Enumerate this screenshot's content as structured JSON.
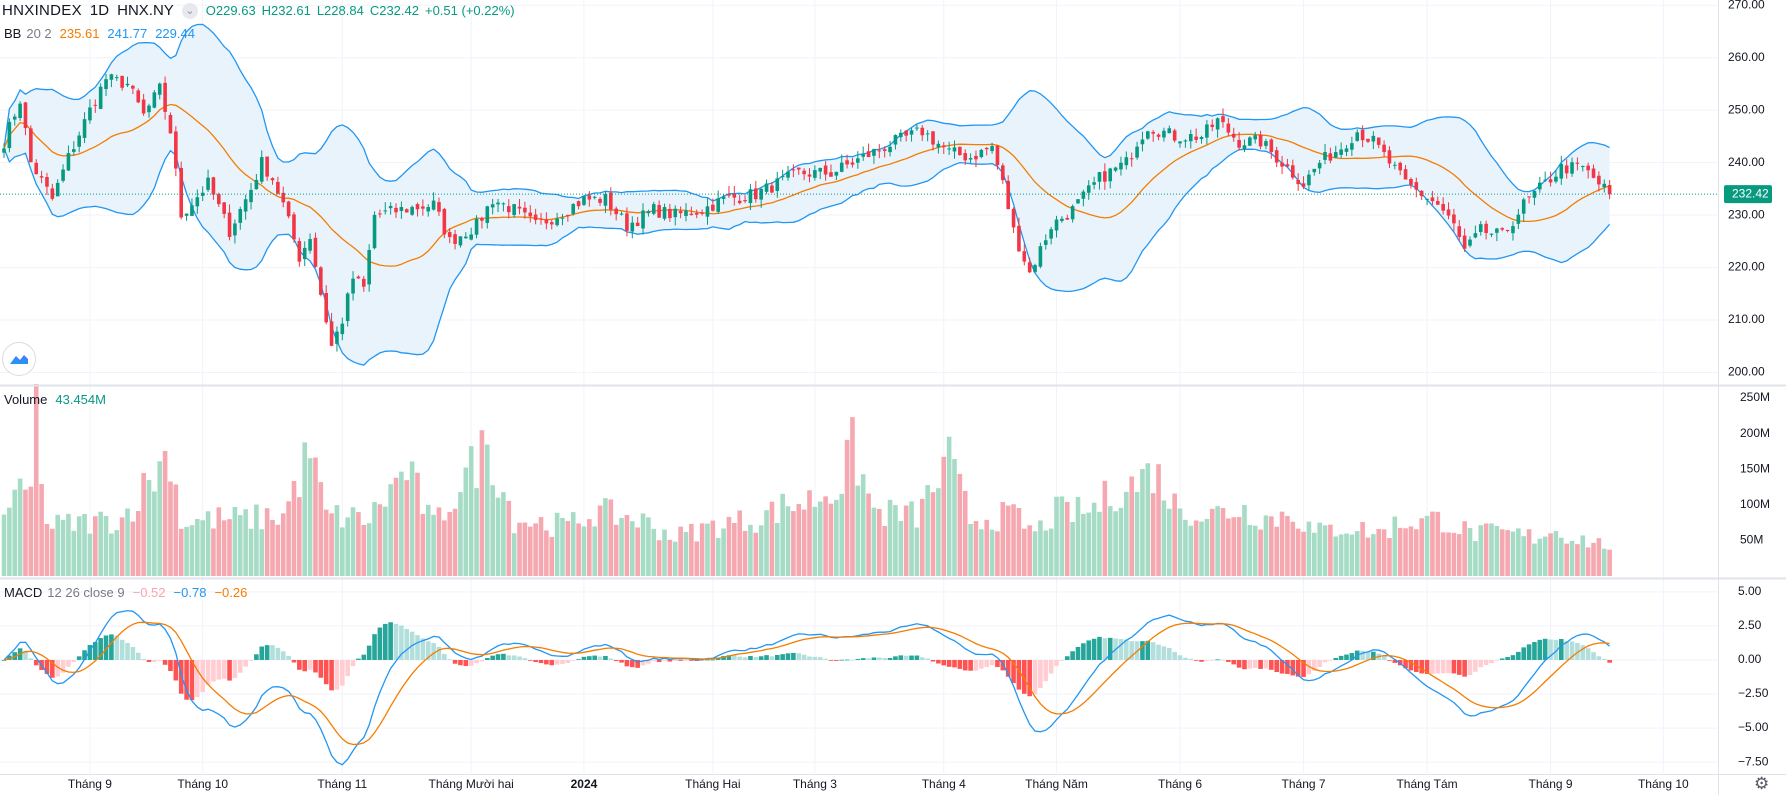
{
  "header": {
    "symbol": "HNXINDEX",
    "interval": "1D",
    "exchange": "HNX.NY",
    "open": "O229.63",
    "high": "H232.61",
    "low": "L228.84",
    "close": "C232.42",
    "change": "+0.51 (+0.22%)"
  },
  "bb_legend": {
    "name": "BB",
    "params": "20 2",
    "basis": "235.61",
    "upper": "241.77",
    "lower": "229.44"
  },
  "volume_legend": {
    "name": "Volume",
    "value": "43.454M"
  },
  "macd_legend": {
    "name": "MACD",
    "params": "12 26 close 9",
    "hist": "−0.52",
    "macd": "−0.78",
    "signal": "−0.26"
  },
  "colors": {
    "up": "#089981",
    "down": "#f23645",
    "vol_up": "#a6dcc5",
    "vol_down": "#f5a8b0",
    "bb_basis": "#f57c00",
    "bb_band": "#2196f3",
    "bb_fill": "#e9f3fc",
    "macd_line": "#2196f3",
    "signal_line": "#f57c00",
    "hist_up_strong": "#26a69a",
    "hist_up_weak": "#b2dfdb",
    "hist_down_strong": "#ff5252",
    "hist_down_weak": "#ffcdd2"
  },
  "icons": {
    "logo": "tradingview-logo-icon",
    "settings": "gear-icon",
    "collapse": "chevron-icon"
  },
  "chart_data": {
    "type": "candlestick",
    "symbol": "HNXINDEX",
    "last_price_label": "232.42",
    "price_axis": {
      "ticks": [
        "270.00",
        "260.00",
        "250.00",
        "240.00",
        "230.00",
        "220.00",
        "210.00",
        "200.00"
      ],
      "ylim": [
        198,
        271
      ]
    },
    "volume_axis": {
      "ticks": [
        "250M",
        "200M",
        "150M",
        "100M",
        "50M"
      ],
      "ylim": [
        0,
        250
      ]
    },
    "macd_axis": {
      "ticks": [
        "5.00",
        "2.50",
        "0.00",
        "−2.50",
        "−5.00",
        "−7.50"
      ],
      "ylim": [
        -8.3,
        5.8
      ]
    },
    "time_axis": [
      {
        "label": "Tháng 9",
        "index": 16,
        "bold": false
      },
      {
        "label": "Tháng 10",
        "index": 37,
        "bold": false
      },
      {
        "label": "Tháng 11",
        "index": 63,
        "bold": false
      },
      {
        "label": "Tháng Mười hai",
        "index": 87,
        "bold": false
      },
      {
        "label": "2024",
        "index": 108,
        "bold": true
      },
      {
        "label": "Tháng Hai",
        "index": 132,
        "bold": false
      },
      {
        "label": "Tháng 3",
        "index": 151,
        "bold": false
      },
      {
        "label": "Tháng 4",
        "index": 175,
        "bold": false
      },
      {
        "label": "Tháng Năm",
        "index": 196,
        "bold": false
      },
      {
        "label": "Tháng 6",
        "index": 219,
        "bold": false
      },
      {
        "label": "Tháng 7",
        "index": 242,
        "bold": false
      },
      {
        "label": "Tháng Tám",
        "index": 265,
        "bold": false
      },
      {
        "label": "Tháng 9",
        "index": 288,
        "bold": false
      },
      {
        "label": "Tháng 10",
        "index": 309,
        "bold": false
      }
    ],
    "bar_count": 300,
    "close_waypoints": [
      [
        0,
        244
      ],
      [
        3,
        252
      ],
      [
        5,
        240
      ],
      [
        9,
        233
      ],
      [
        12,
        241
      ],
      [
        16,
        250
      ],
      [
        19,
        256
      ],
      [
        23,
        255
      ],
      [
        26,
        249
      ],
      [
        29,
        254
      ],
      [
        31,
        246
      ],
      [
        33,
        230
      ],
      [
        38,
        236
      ],
      [
        42,
        227
      ],
      [
        46,
        235
      ],
      [
        48,
        240
      ],
      [
        50,
        237
      ],
      [
        52,
        232
      ],
      [
        55,
        222
      ],
      [
        57,
        226
      ],
      [
        59,
        215
      ],
      [
        61,
        205
      ],
      [
        63,
        210
      ],
      [
        65,
        218
      ],
      [
        67,
        216
      ],
      [
        69,
        230
      ],
      [
        74,
        231
      ],
      [
        80,
        232
      ],
      [
        83,
        225
      ],
      [
        88,
        228
      ],
      [
        91,
        233
      ],
      [
        95,
        231
      ],
      [
        99,
        228
      ],
      [
        103,
        230
      ],
      [
        108,
        233
      ],
      [
        112,
        233
      ],
      [
        116,
        228
      ],
      [
        121,
        231
      ],
      [
        125,
        230
      ],
      [
        130,
        231
      ],
      [
        134,
        233
      ],
      [
        140,
        234
      ],
      [
        148,
        238
      ],
      [
        154,
        238
      ],
      [
        160,
        241
      ],
      [
        166,
        244
      ],
      [
        171,
        246
      ],
      [
        176,
        242
      ],
      [
        180,
        241
      ],
      [
        184,
        243
      ],
      [
        186,
        236
      ],
      [
        188,
        227
      ],
      [
        191,
        219
      ],
      [
        195,
        228
      ],
      [
        199,
        231
      ],
      [
        204,
        237
      ],
      [
        209,
        240
      ],
      [
        211,
        244
      ],
      [
        213,
        247
      ],
      [
        218,
        245
      ],
      [
        223,
        245
      ],
      [
        226,
        248
      ],
      [
        230,
        244
      ],
      [
        234,
        244
      ],
      [
        238,
        240
      ],
      [
        242,
        236
      ],
      [
        245,
        240
      ],
      [
        249,
        243
      ],
      [
        252,
        246
      ],
      [
        255,
        244
      ],
      [
        258,
        240
      ],
      [
        261,
        236
      ],
      [
        264,
        234
      ],
      [
        267,
        232
      ],
      [
        270,
        228
      ],
      [
        272,
        223
      ],
      [
        275,
        227
      ],
      [
        279,
        226
      ],
      [
        283,
        232
      ],
      [
        287,
        236
      ],
      [
        290,
        239
      ],
      [
        294,
        239
      ],
      [
        297,
        236
      ],
      [
        299,
        234
      ],
      [
        300,
        231
      ],
      [
        302,
        232.42
      ]
    ],
    "volume_waypoints": [
      [
        0,
        95
      ],
      [
        5,
        120
      ],
      [
        6,
        235
      ],
      [
        8,
        70
      ],
      [
        15,
        75
      ],
      [
        22,
        80
      ],
      [
        31,
        175
      ],
      [
        33,
        75
      ],
      [
        40,
        80
      ],
      [
        45,
        80
      ],
      [
        52,
        85
      ],
      [
        57,
        175
      ],
      [
        60,
        85
      ],
      [
        68,
        80
      ],
      [
        75,
        150
      ],
      [
        80,
        70
      ],
      [
        90,
        185
      ],
      [
        95,
        80
      ],
      [
        105,
        70
      ],
      [
        110,
        90
      ],
      [
        118,
        80
      ],
      [
        125,
        55
      ],
      [
        132,
        70
      ],
      [
        140,
        80
      ],
      [
        146,
        100
      ],
      [
        150,
        105
      ],
      [
        156,
        130
      ],
      [
        158,
        180
      ],
      [
        162,
        90
      ],
      [
        170,
        85
      ],
      [
        176,
        160
      ],
      [
        180,
        80
      ],
      [
        188,
        85
      ],
      [
        192,
        60
      ],
      [
        196,
        90
      ],
      [
        202,
        90
      ],
      [
        207,
        120
      ],
      [
        211,
        130
      ],
      [
        214,
        150
      ],
      [
        218,
        100
      ],
      [
        224,
        85
      ],
      [
        230,
        95
      ],
      [
        236,
        80
      ],
      [
        240,
        90
      ],
      [
        244,
        60
      ],
      [
        250,
        70
      ],
      [
        256,
        60
      ],
      [
        260,
        75
      ],
      [
        268,
        80
      ],
      [
        273,
        60
      ],
      [
        279,
        60
      ],
      [
        285,
        55
      ],
      [
        288,
        65
      ],
      [
        292,
        55
      ],
      [
        297,
        45
      ],
      [
        302,
        43
      ]
    ],
    "bollinger": {
      "period": 20,
      "mult": 2,
      "last_basis": 235.61,
      "last_upper": 241.77,
      "last_lower": 229.44
    },
    "macd": {
      "fast": 12,
      "slow": 26,
      "signal": 9,
      "last_hist": -0.52,
      "last_macd": -0.78,
      "last_signal": -0.26
    }
  }
}
